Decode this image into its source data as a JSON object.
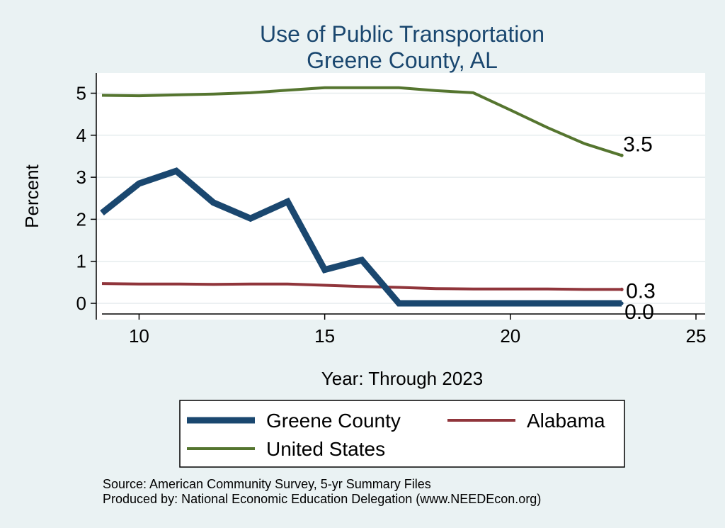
{
  "chart_data": {
    "type": "line",
    "title": [
      "Use of Public Transportation",
      "Greene County, AL"
    ],
    "xlabel": "Year: Through 2023",
    "ylabel": "Percent",
    "xlim": [
      9,
      25
    ],
    "ylim": [
      0,
      5.25
    ],
    "xticks": [
      10,
      15,
      20,
      25
    ],
    "yticks": [
      0,
      1,
      2,
      3,
      4,
      5
    ],
    "grid": true,
    "legend_position": "bottom",
    "series": [
      {
        "name": "Greene County",
        "color": "#1a476f",
        "x": [
          9,
          10,
          11,
          12,
          13,
          14,
          15,
          16,
          17,
          18,
          19,
          20,
          21,
          22,
          23
        ],
        "values": [
          2.15,
          2.85,
          3.15,
          2.4,
          2.02,
          2.42,
          0.8,
          1.03,
          0.0,
          0.0,
          0.0,
          0.0,
          0.0,
          0.0,
          0.0
        ],
        "end_label": "0.0"
      },
      {
        "name": "Alabama",
        "color": "#90353b",
        "x": [
          9,
          10,
          11,
          12,
          13,
          14,
          15,
          16,
          17,
          18,
          19,
          20,
          21,
          22,
          23
        ],
        "values": [
          0.47,
          0.46,
          0.46,
          0.45,
          0.46,
          0.46,
          0.43,
          0.4,
          0.38,
          0.35,
          0.34,
          0.34,
          0.34,
          0.33,
          0.33
        ],
        "end_label": "0.3"
      },
      {
        "name": "United States",
        "color": "#55752f",
        "x": [
          9,
          10,
          11,
          12,
          13,
          14,
          15,
          16,
          17,
          18,
          19,
          20,
          21,
          22,
          23
        ],
        "values": [
          4.95,
          4.94,
          4.96,
          4.98,
          5.01,
          5.07,
          5.13,
          5.13,
          5.13,
          5.06,
          5.01,
          4.6,
          4.18,
          3.8,
          3.52
        ],
        "end_label": "3.5"
      }
    ]
  },
  "source_lines": [
    "Source: American Community Survey, 5-yr Summary Files",
    "Produced by: National Economic Education Delegation (www.NEEDEcon.org)"
  ]
}
